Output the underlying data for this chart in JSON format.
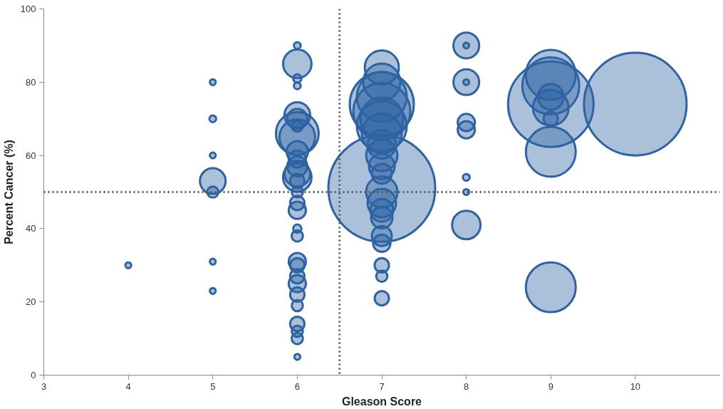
{
  "chart_data": {
    "type": "bubble",
    "xlabel": "Gleason Score",
    "ylabel": "Percent Cancer (%)",
    "xlim": [
      3,
      11
    ],
    "xticks": [
      3,
      4,
      5,
      6,
      7,
      8,
      9,
      10
    ],
    "ylim": [
      0,
      100
    ],
    "yticks": [
      0,
      20,
      40,
      60,
      80,
      100
    ],
    "grid": false,
    "marker": "circle",
    "ref_lines": [
      {
        "axis": "x",
        "value": 6.5,
        "color": "#555555",
        "line_style": "dotted"
      },
      {
        "axis": "y",
        "value": 50,
        "color": "#555555",
        "line_style": "dotted"
      }
    ],
    "series": [
      {
        "color": "#2e63a3",
        "x": [
          4,
          5,
          5,
          5,
          5,
          5,
          5,
          5,
          6,
          6,
          6,
          6,
          6,
          6,
          6,
          6,
          6,
          6,
          6,
          6,
          6,
          6,
          6,
          6,
          6,
          6,
          6,
          6,
          6,
          6,
          6,
          6,
          6,
          6,
          6,
          6,
          6,
          6,
          7,
          7,
          7,
          7,
          7,
          7,
          7,
          7,
          7,
          7,
          7,
          7,
          7,
          7,
          7,
          7,
          7,
          7,
          7,
          7,
          7,
          7,
          8,
          8,
          8,
          8,
          8,
          8,
          8,
          8,
          8,
          9,
          9,
          9,
          9,
          9,
          9,
          9,
          9,
          10
        ],
        "values": [
          30,
          80,
          70,
          60,
          53,
          50,
          31,
          23,
          90,
          85,
          81,
          79,
          71,
          70,
          68,
          66,
          65,
          61,
          59,
          57,
          55,
          54,
          53,
          50,
          47,
          45,
          40,
          38,
          31,
          30,
          27,
          25,
          22,
          19,
          14,
          12,
          10,
          5,
          84,
          80,
          76,
          74,
          72,
          70,
          68,
          66,
          63,
          60,
          57,
          55,
          51,
          50,
          47,
          45,
          43,
          38,
          36,
          30,
          27,
          21,
          90,
          90,
          80,
          80,
          69,
          67,
          54,
          50,
          41,
          82,
          79,
          76,
          74,
          73,
          70,
          61,
          24,
          74
        ],
        "sizes": [
          0.003,
          0.003,
          0.004,
          0.003,
          0.058,
          0.011,
          0.003,
          0.003,
          0.004,
          0.071,
          0.006,
          0.004,
          0.058,
          0.035,
          0.011,
          0.16,
          0.111,
          0.04,
          0.026,
          0.035,
          0.058,
          0.071,
          0.018,
          0.011,
          0.018,
          0.026,
          0.006,
          0.011,
          0.026,
          0.018,
          0.018,
          0.026,
          0.018,
          0.011,
          0.018,
          0.011,
          0.011,
          0.003,
          0.102,
          0.12,
          0.218,
          0.36,
          0.284,
          0.16,
          0.218,
          0.139,
          0.071,
          0.086,
          0.058,
          0.035,
          1,
          0.086,
          0.071,
          0.046,
          0.04,
          0.035,
          0.026,
          0.018,
          0.011,
          0.018,
          0.058,
          0.003,
          0.058,
          0.003,
          0.026,
          0.026,
          0.004,
          0.003,
          0.071,
          0.218,
          0.284,
          0.058,
          0.64,
          0.111,
          0.018,
          0.218,
          0.218,
          0.922
        ]
      }
    ]
  }
}
